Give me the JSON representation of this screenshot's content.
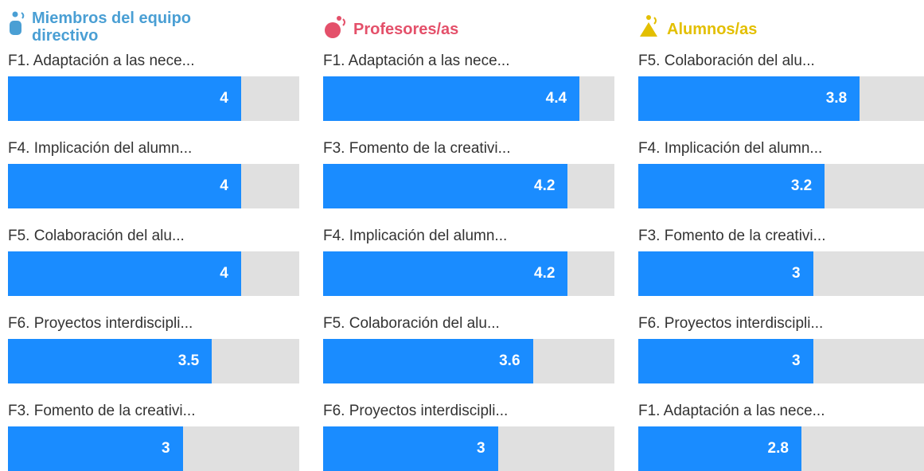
{
  "chart_data": [
    {
      "type": "bar",
      "orientation": "horizontal",
      "title": "Miembros del equipo directivo",
      "title_color": "#4a9fd4",
      "categories": [
        "F1. Adaptación a las nece...",
        "F4. Implicación del alumn...",
        "F5. Colaboración del alu...",
        "F6. Proyectos interdiscipli...",
        "F3. Fomento de la creativi..."
      ],
      "values": [
        4,
        4,
        4,
        3.5,
        3
      ],
      "color": "#1a8cff",
      "track_color": "#e0e0e0",
      "xlim": [
        0,
        5
      ]
    },
    {
      "type": "bar",
      "orientation": "horizontal",
      "title": "Profesores/as",
      "title_color": "#e4506a",
      "categories": [
        "F1. Adaptación a las nece...",
        "F3. Fomento de la creativi...",
        "F4. Implicación del alumn...",
        "F5. Colaboración del alu...",
        "F6. Proyectos interdiscipli..."
      ],
      "values": [
        4.4,
        4.2,
        4.2,
        3.6,
        3
      ],
      "color": "#1a8cff",
      "track_color": "#e0e0e0",
      "xlim": [
        0,
        5
      ]
    },
    {
      "type": "bar",
      "orientation": "horizontal",
      "title": "Alumnos/as",
      "title_color": "#e3bf00",
      "categories": [
        "F5. Colaboración del alu...",
        "F4. Implicación del alumn...",
        "F3. Fomento de la creativi...",
        "F6. Proyectos interdiscipli...",
        "F1. Adaptación a las nece..."
      ],
      "values": [
        3.8,
        3.2,
        3,
        3,
        2.8
      ],
      "color": "#1a8cff",
      "track_color": "#e0e0e0",
      "xlim": [
        0,
        5
      ]
    }
  ]
}
